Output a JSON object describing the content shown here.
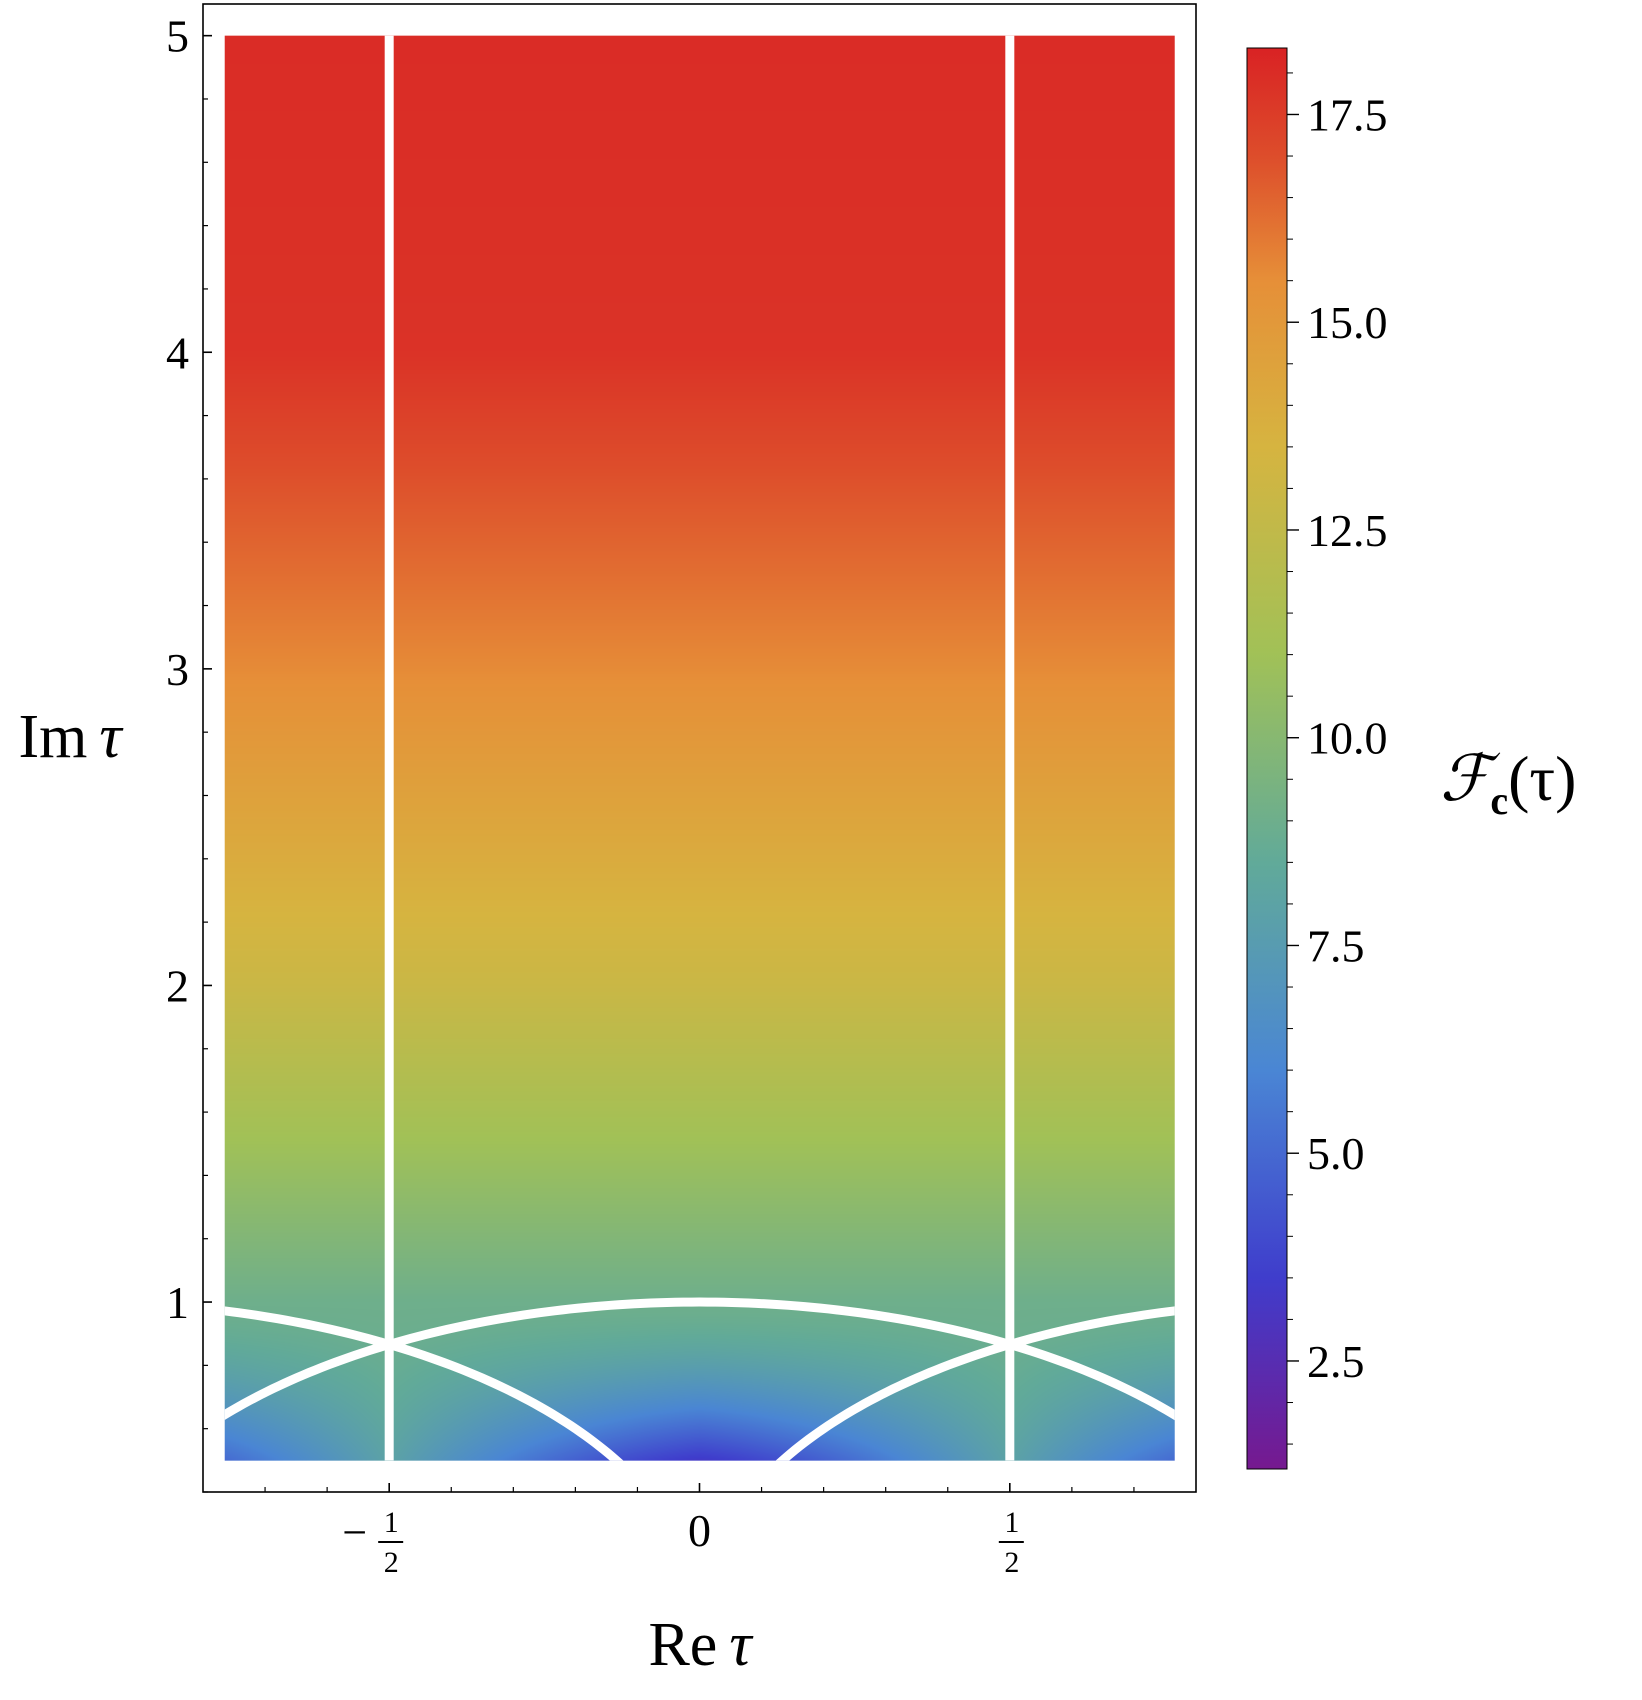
{
  "chart_data": {
    "type": "heatmap",
    "title": "",
    "xlabel": {
      "main": "Re",
      "symbol": "τ"
    },
    "ylabel": {
      "main": "Im",
      "symbol": "τ"
    },
    "colorbar_label": {
      "main": "ℱ",
      "sub": "c",
      "arg": "(τ)"
    },
    "xlim": [
      -0.8,
      0.8
    ],
    "ylim": [
      0.4,
      5.1
    ],
    "data_region": {
      "x": [
        -0.765,
        0.765
      ],
      "y": [
        0.5,
        5.0
      ]
    },
    "x_ticks": [
      {
        "value": -0.5,
        "sign": "−",
        "num": "1",
        "den": "2"
      },
      {
        "value": 0,
        "text": "0"
      },
      {
        "value": 0.5,
        "sign": "",
        "num": "1",
        "den": "2"
      }
    ],
    "y_ticks": [
      {
        "value": 1,
        "text": "1"
      },
      {
        "value": 2,
        "text": "2"
      },
      {
        "value": 3,
        "text": "3"
      },
      {
        "value": 4,
        "text": "4"
      },
      {
        "value": 5,
        "text": "5"
      }
    ],
    "colorbar": {
      "range": [
        1.2,
        18.3
      ],
      "ticks": [
        {
          "value": 2.5,
          "text": "2.5"
        },
        {
          "value": 5.0,
          "text": "5.0"
        },
        {
          "value": 7.5,
          "text": "7.5"
        },
        {
          "value": 10.0,
          "text": "10.0"
        },
        {
          "value": 12.5,
          "text": "12.5"
        },
        {
          "value": 15.0,
          "text": "15.0"
        },
        {
          "value": 17.5,
          "text": "17.5"
        }
      ],
      "colormap": [
        {
          "v": 1.2,
          "color": "#76198f"
        },
        {
          "v": 3.5,
          "color": "#3f3dcc"
        },
        {
          "v": 6.0,
          "color": "#4a86d4"
        },
        {
          "v": 8.5,
          "color": "#61aa99"
        },
        {
          "v": 11.0,
          "color": "#a1c157"
        },
        {
          "v": 13.5,
          "color": "#d6b440"
        },
        {
          "v": 15.5,
          "color": "#e68f38"
        },
        {
          "v": 17.0,
          "color": "#dd4d2b"
        },
        {
          "v": 18.3,
          "color": "#d92224"
        }
      ]
    },
    "field_values": {
      "at_im_0.5_re_0": 3.3,
      "at_im_0.5_re_0.5": 8.0,
      "at_im_1": 9.0,
      "at_im_2": 12.9,
      "at_im_3": 15.6,
      "at_im_4": 17.8,
      "at_im_5": 18.0
    },
    "boundary_lines": [
      {
        "type": "vertical",
        "x": -0.5,
        "color": "#ffffff"
      },
      {
        "type": "vertical",
        "x": 0.5,
        "color": "#ffffff"
      },
      {
        "type": "arc",
        "center_re": 0,
        "radius": 1,
        "color": "#ffffff"
      },
      {
        "type": "arc",
        "center_re": -1,
        "radius": 1,
        "color": "#ffffff"
      },
      {
        "type": "arc",
        "center_re": 1,
        "radius": 1,
        "color": "#ffffff"
      }
    ],
    "grid": false,
    "legend": "colorbar-right"
  }
}
